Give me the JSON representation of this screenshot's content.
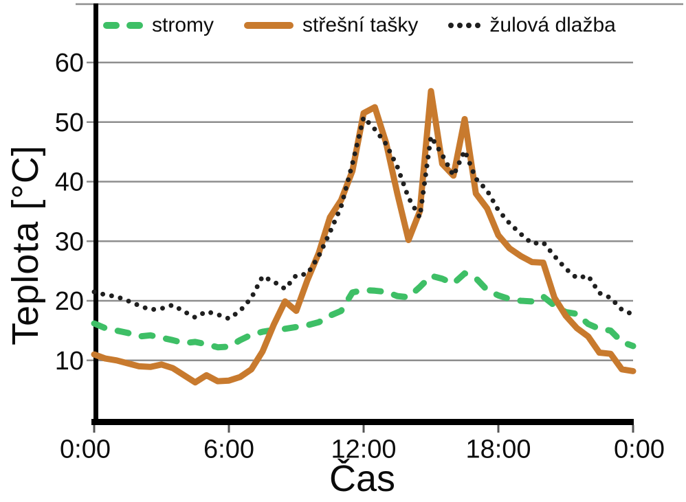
{
  "chart": {
    "ylabel": "Teplota [°C]",
    "xlabel": "Čas"
  },
  "chart_data": {
    "type": "line",
    "title": "",
    "xlabel": "Čas",
    "ylabel": "Teplota [°C]",
    "x_unit": "hours",
    "x": [
      0,
      0.5,
      1,
      1.5,
      2,
      2.5,
      3,
      3.5,
      4,
      4.5,
      5,
      5.5,
      6,
      6.5,
      7,
      7.5,
      8,
      8.5,
      9,
      9.5,
      10,
      10.5,
      11,
      11.5,
      12,
      12.5,
      13,
      13.5,
      14,
      14.5,
      15,
      15.5,
      16,
      16.5,
      17,
      17.5,
      18,
      18.5,
      19,
      19.5,
      20,
      20.5,
      21,
      21.5,
      22,
      22.5,
      23,
      23.5,
      24
    ],
    "x_tick_hours": [
      0,
      6,
      12,
      18,
      24
    ],
    "x_tick_labels": [
      "0:00",
      "6:00",
      "12:00",
      "18:00",
      "0:00"
    ],
    "y_ticks": [
      10,
      20,
      30,
      40,
      50,
      60
    ],
    "ylim": [
      0,
      63
    ],
    "grid": true,
    "legend_position": "top",
    "colors": {
      "grid": "#8e8e8e",
      "axis": "#000000",
      "tick_text": "#0c0c0c"
    },
    "series": [
      {
        "name": "stromy",
        "color": "#3ebf66",
        "line_style": "dashed",
        "values": [
          16.2,
          15.4,
          15.0,
          14.6,
          14.0,
          14.2,
          13.8,
          13.4,
          12.9,
          13.1,
          12.7,
          12.2,
          12.3,
          13.4,
          14.3,
          14.8,
          15.1,
          15.3,
          15.6,
          15.9,
          16.4,
          17.5,
          18.3,
          21.4,
          21.8,
          21.7,
          21.5,
          20.8,
          20.6,
          22.3,
          24.2,
          23.7,
          22.9,
          24.6,
          23.8,
          21.8,
          20.9,
          20.3,
          20.0,
          19.9,
          20.7,
          19.2,
          18.1,
          17.8,
          16.1,
          15.3,
          15.0,
          13.1,
          12.4
        ]
      },
      {
        "name": "střešní tašky",
        "color": "#c87a2e",
        "line_style": "solid",
        "values": [
          11.0,
          10.3,
          10.0,
          9.5,
          9.0,
          8.9,
          9.3,
          8.7,
          7.5,
          6.3,
          7.5,
          6.5,
          6.6,
          7.2,
          8.5,
          11.5,
          16.0,
          19.9,
          18.3,
          23.5,
          28.0,
          34.0,
          36.9,
          41.8,
          51.5,
          52.5,
          46.5,
          38.0,
          30.2,
          35.0,
          55.2,
          43.0,
          41.0,
          50.5,
          38.0,
          35.5,
          31.0,
          28.8,
          27.5,
          26.5,
          26.4,
          20.5,
          17.5,
          15.4,
          14.0,
          11.3,
          11.1,
          8.5,
          8.2
        ]
      },
      {
        "name": "žulová dlažba",
        "color": "#1f1f1f",
        "line_style": "dotted",
        "values": [
          21.5,
          21.0,
          20.7,
          20.0,
          19.2,
          18.5,
          18.7,
          19.3,
          18.2,
          17.2,
          18.2,
          17.7,
          17.0,
          18.3,
          20.5,
          24.1,
          23.2,
          22.0,
          24.3,
          24.5,
          27.5,
          31.5,
          35.8,
          43.0,
          50.8,
          48.8,
          46.3,
          42.5,
          37.3,
          34.0,
          47.6,
          44.5,
          41.0,
          45.2,
          40.5,
          38.5,
          35.2,
          33.0,
          31.2,
          29.6,
          29.8,
          27.5,
          25.4,
          23.8,
          24.2,
          21.3,
          20.5,
          18.5,
          17.7
        ]
      }
    ]
  }
}
